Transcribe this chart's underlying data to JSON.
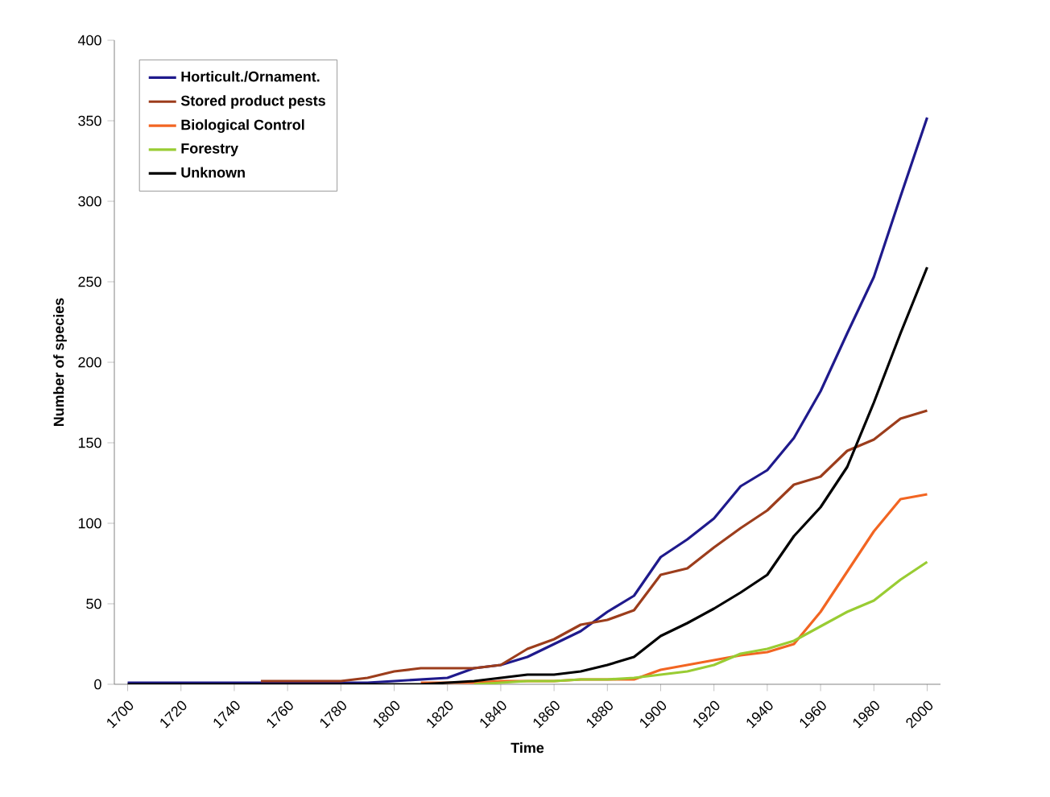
{
  "chart_data": {
    "type": "line",
    "xlabel": "Time",
    "ylabel": "Number of species",
    "x": [
      1700,
      1710,
      1720,
      1730,
      1740,
      1750,
      1760,
      1770,
      1780,
      1790,
      1800,
      1810,
      1820,
      1830,
      1840,
      1850,
      1860,
      1870,
      1880,
      1890,
      1900,
      1910,
      1920,
      1930,
      1940,
      1950,
      1960,
      1970,
      1980,
      1990,
      2000
    ],
    "xlim": [
      1695,
      2005
    ],
    "xticks": [
      1700,
      1720,
      1740,
      1760,
      1780,
      1800,
      1820,
      1840,
      1860,
      1880,
      1900,
      1920,
      1940,
      1960,
      1980,
      2000
    ],
    "ylim": [
      0,
      400
    ],
    "yticks": [
      0,
      50,
      100,
      150,
      200,
      250,
      300,
      350,
      400
    ],
    "grid": false,
    "legend": "top left",
    "marker": "none",
    "line_style": "solid",
    "series": [
      {
        "name": "Horticult./Ornament.",
        "color": "#1f1a8c",
        "values": [
          1,
          1,
          1,
          1,
          1,
          1,
          1,
          1,
          1,
          1,
          2,
          3,
          4,
          10,
          12,
          17,
          25,
          33,
          45,
          55,
          79,
          90,
          103,
          123,
          133,
          153,
          182,
          218,
          253,
          303,
          352
        ]
      },
      {
        "name": "Stored product pests",
        "color": "#9c3d1c",
        "values": [
          null,
          null,
          null,
          null,
          null,
          2,
          2,
          2,
          2,
          4,
          8,
          10,
          10,
          10,
          12,
          22,
          28,
          37,
          40,
          46,
          68,
          72,
          85,
          97,
          108,
          124,
          129,
          145,
          152,
          165,
          170
        ]
      },
      {
        "name": "Biological Control",
        "color": "#f26522",
        "values": [
          null,
          null,
          null,
          null,
          null,
          null,
          null,
          null,
          null,
          null,
          null,
          1,
          1,
          1,
          2,
          2,
          2,
          3,
          3,
          3,
          9,
          12,
          15,
          18,
          20,
          25,
          45,
          70,
          95,
          115,
          118
        ]
      },
      {
        "name": "Forestry",
        "color": "#99cc33",
        "values": [
          null,
          null,
          null,
          null,
          null,
          null,
          null,
          null,
          null,
          null,
          null,
          null,
          null,
          0,
          1,
          2,
          2,
          3,
          3,
          4,
          6,
          8,
          12,
          19,
          22,
          27,
          36,
          45,
          52,
          65,
          76
        ]
      },
      {
        "name": "Unknown",
        "color": "#000000",
        "values": [
          0,
          0,
          0,
          0,
          0,
          0,
          0,
          0,
          0,
          0,
          0,
          0,
          1,
          2,
          4,
          6,
          6,
          8,
          12,
          17,
          30,
          38,
          47,
          57,
          68,
          92,
          110,
          135,
          175,
          218,
          259
        ]
      }
    ]
  }
}
